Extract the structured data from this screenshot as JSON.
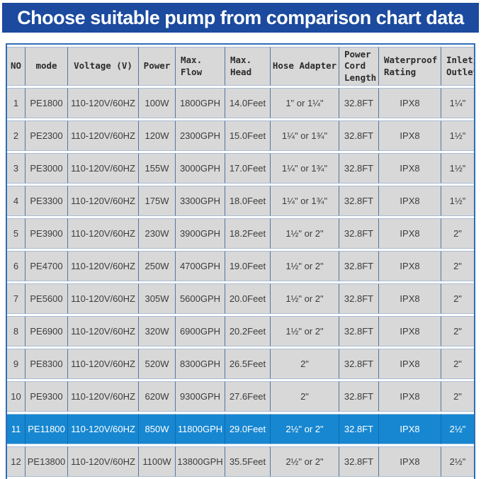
{
  "title": "Choose suitable pump from comparison chart data",
  "colors": {
    "banner_blue": "#1b4a9e",
    "highlight_blue": "#1787d1",
    "outer_border": "#2f6db4",
    "column_line": "#53779f",
    "row_line": "#a9bcd4",
    "cell_gray": "#d8d8d8"
  },
  "table": {
    "columns": [
      {
        "key": "no",
        "label": "NO",
        "width": 26,
        "align": "center"
      },
      {
        "key": "mode",
        "label": "mode",
        "width": 60,
        "align": "center"
      },
      {
        "key": "voltage",
        "label": "Voltage (V)",
        "width": 100,
        "align": "center"
      },
      {
        "key": "power",
        "label": "Power",
        "width": 52,
        "align": "center"
      },
      {
        "key": "max-flow",
        "label": "Max.\nFlow",
        "width": 70,
        "align": "left"
      },
      {
        "key": "max-head",
        "label": "Max.\nHead",
        "width": 64,
        "align": "left"
      },
      {
        "key": "hose",
        "label": "Hose Adapter",
        "width": 97,
        "align": "center"
      },
      {
        "key": "cord",
        "label": "Power\nCord\nLength",
        "width": 56,
        "align": "left"
      },
      {
        "key": "waterproof",
        "label": "Waterproof\nRating",
        "width": 88,
        "align": "left"
      },
      {
        "key": "inlet",
        "label": "Inlet/\nOutlet",
        "width": 46,
        "align": "left"
      }
    ],
    "rows": [
      {
        "highlighted": false,
        "cells": [
          "1",
          "PE1800",
          "110-120V/60HZ",
          "100W",
          "1800GPH",
          "14.0Feet",
          "1\" or 1¼\"",
          "32.8FT",
          "IPX8",
          "1¼\""
        ]
      },
      {
        "highlighted": false,
        "cells": [
          "2",
          "PE2300",
          "110-120V/60HZ",
          "120W",
          "2300GPH",
          "15.0Feet",
          "1¼\" or 1¾\"",
          "32.8FT",
          "IPX8",
          "1½\""
        ]
      },
      {
        "highlighted": false,
        "cells": [
          "3",
          "PE3000",
          "110-120V/60HZ",
          "155W",
          "3000GPH",
          "17.0Feet",
          "1¼\" or 1¾\"",
          "32.8FT",
          "IPX8",
          "1½\""
        ]
      },
      {
        "highlighted": false,
        "cells": [
          "4",
          "PE3300",
          "110-120V/60HZ",
          "175W",
          "3300GPH",
          "18.0Feet",
          "1¼\" or 1¾\"",
          "32.8FT",
          "IPX8",
          "1½\""
        ]
      },
      {
        "highlighted": false,
        "cells": [
          "5",
          "PE3900",
          "110-120V/60HZ",
          "230W",
          "3900GPH",
          "18.2Feet",
          "1½\" or 2\"",
          "32.8FT",
          "IPX8",
          "2\""
        ]
      },
      {
        "highlighted": false,
        "cells": [
          "6",
          "PE4700",
          "110-120V/60HZ",
          "250W",
          "4700GPH",
          "19.0Feet",
          "1½\" or 2\"",
          "32.8FT",
          "IPX8",
          "2\""
        ]
      },
      {
        "highlighted": false,
        "cells": [
          "7",
          "PE5600",
          "110-120V/60HZ",
          "305W",
          "5600GPH",
          "20.0Feet",
          "1½\" or 2\"",
          "32.8FT",
          "IPX8",
          "2\""
        ]
      },
      {
        "highlighted": false,
        "cells": [
          "8",
          "PE6900",
          "110-120V/60HZ",
          "320W",
          "6900GPH",
          "20.2Feet",
          "1½\" or 2\"",
          "32.8FT",
          "IPX8",
          "2\""
        ]
      },
      {
        "highlighted": false,
        "cells": [
          "9",
          "PE8300",
          "110-120V/60HZ",
          "520W",
          "8300GPH",
          "26.5Feet",
          "2\"",
          "32.8FT",
          "IPX8",
          "2\""
        ]
      },
      {
        "highlighted": false,
        "cells": [
          "10",
          "PE9300",
          "110-120V/60HZ",
          "620W",
          "9300GPH",
          "27.6Feet",
          "2\"",
          "32.8FT",
          "IPX8",
          "2\""
        ]
      },
      {
        "highlighted": true,
        "cells": [
          "11",
          "PE11800",
          "110-120V/60HZ",
          "850W",
          "11800GPH",
          "29.0Feet",
          "2½\" or 2\"",
          "32.8FT",
          "IPX8",
          "2½\""
        ]
      },
      {
        "highlighted": false,
        "cells": [
          "12",
          "PE13800",
          "110-120V/60HZ",
          "1100W",
          "13800GPH",
          "35.5Feet",
          "2½\" or 2\"",
          "32.8FT",
          "IPX8",
          "2½\""
        ]
      }
    ]
  }
}
